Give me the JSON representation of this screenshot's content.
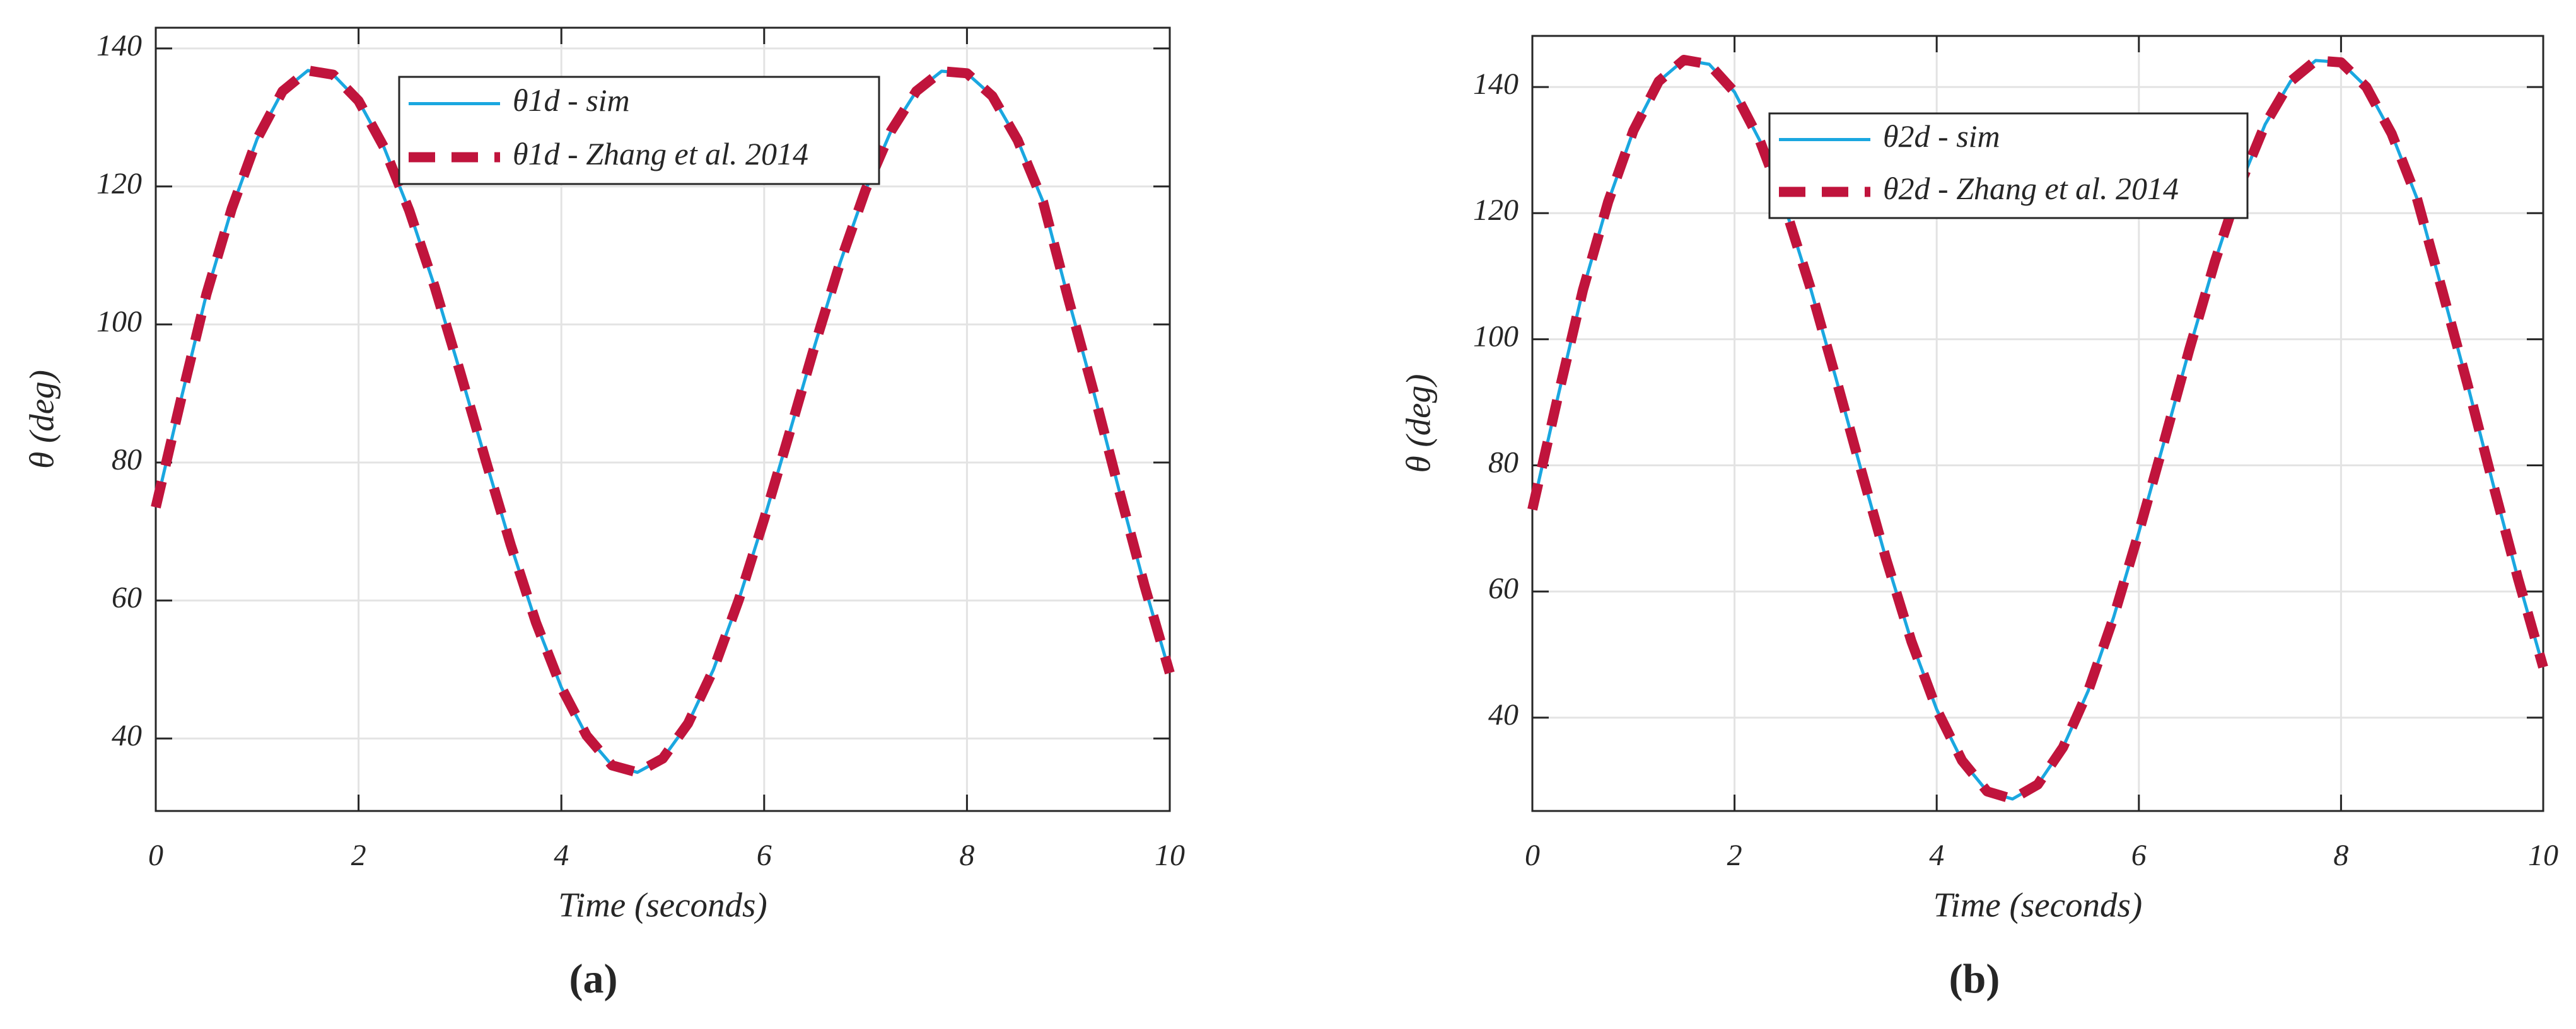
{
  "chart_data": [
    {
      "type": "line",
      "panel_label": "(a)",
      "xlabel": "Time (seconds)",
      "ylabel": "θ (deg)",
      "x": [
        0,
        0.25,
        0.5,
        0.75,
        1,
        1.25,
        1.5,
        1.75,
        2,
        2.25,
        2.5,
        2.75,
        3,
        3.25,
        3.5,
        3.75,
        4,
        4.25,
        4.5,
        4.75,
        5,
        5.25,
        5.5,
        5.75,
        6,
        6.25,
        6.5,
        6.75,
        7,
        7.25,
        7.5,
        7.75,
        8,
        8.25,
        8.5,
        8.75,
        9,
        9.25,
        9.5,
        9.75,
        10
      ],
      "series": [
        {
          "name": "θ1d - sim",
          "color": "#1aa7e0",
          "line_style": "solid",
          "values": [
            73.5,
            89.2,
            104.4,
            116.8,
            126.9,
            133.8,
            136.8,
            136.2,
            132.4,
            125.7,
            116.5,
            105.5,
            93.2,
            80.5,
            68.1,
            56.8,
            47.4,
            40.4,
            36.1,
            35.1,
            37.1,
            42.2,
            50.0,
            60.1,
            71.8,
            84.3,
            97.0,
            109.0,
            119.5,
            128.0,
            133.8,
            136.7,
            136.4,
            133.1,
            126.7,
            117.8,
            103.7,
            90.2,
            76.0,
            62.2,
            49.5
          ]
        },
        {
          "name": "θ1d - Zhang et al. 2014",
          "color": "#c0143c",
          "line_style": "dashed",
          "values": [
            73.5,
            89.2,
            104.4,
            116.8,
            126.9,
            133.8,
            136.8,
            136.2,
            132.4,
            125.7,
            116.5,
            105.5,
            93.2,
            80.5,
            68.1,
            56.8,
            47.4,
            40.4,
            36.1,
            35.1,
            37.1,
            42.2,
            50.0,
            60.1,
            71.8,
            84.3,
            97.0,
            109.0,
            119.5,
            128.0,
            133.8,
            136.7,
            136.4,
            133.1,
            126.7,
            117.8,
            103.7,
            90.2,
            76.0,
            62.2,
            49.5
          ]
        }
      ],
      "xlim": [
        0,
        10
      ],
      "xticks": [
        0,
        2,
        4,
        6,
        8,
        10
      ],
      "ylim": [
        29.5,
        143
      ],
      "yticks": [
        40,
        60,
        80,
        100,
        120,
        140
      ],
      "grid": true
    },
    {
      "type": "line",
      "panel_label": "(b)",
      "xlabel": "Time (seconds)",
      "ylabel": "θ (deg)",
      "x": [
        0,
        0.25,
        0.5,
        0.75,
        1,
        1.25,
        1.5,
        1.75,
        2,
        2.25,
        2.5,
        2.75,
        3,
        3.25,
        3.5,
        3.75,
        4,
        4.25,
        4.5,
        4.75,
        5,
        5.25,
        5.5,
        5.75,
        6,
        6.25,
        6.5,
        6.75,
        7,
        7.25,
        7.5,
        7.75,
        8,
        8.25,
        8.5,
        8.75,
        9,
        9.25,
        9.5,
        9.75,
        10
      ],
      "series": [
        {
          "name": "θ2d - sim",
          "color": "#1aa7e0",
          "line_style": "solid",
          "values": [
            73.0,
            90.7,
            107.8,
            121.8,
            133.1,
            140.9,
            144.3,
            143.6,
            139.2,
            131.5,
            120.9,
            108.2,
            94.0,
            79.4,
            65.1,
            52.1,
            41.3,
            33.2,
            28.3,
            27.1,
            29.4,
            35.3,
            44.3,
            55.9,
            69.4,
            83.8,
            98.4,
            112.2,
            124.4,
            134.1,
            140.9,
            144.2,
            143.9,
            140.0,
            132.6,
            122.4,
            107.8,
            92.9,
            77.3,
            62.1,
            48.0
          ]
        },
        {
          "name": "θ2d - Zhang et al. 2014",
          "color": "#c0143c",
          "line_style": "dashed",
          "values": [
            73.0,
            90.7,
            107.8,
            121.8,
            133.1,
            140.9,
            144.3,
            143.6,
            139.2,
            131.5,
            120.9,
            108.2,
            94.0,
            79.4,
            65.1,
            52.1,
            41.3,
            33.2,
            28.3,
            27.1,
            29.4,
            35.3,
            44.3,
            55.9,
            69.4,
            83.8,
            98.4,
            112.2,
            124.4,
            134.1,
            140.9,
            144.2,
            143.9,
            140.0,
            132.6,
            122.4,
            107.8,
            92.9,
            77.3,
            62.1,
            48.0
          ]
        }
      ],
      "xlim": [
        0,
        10
      ],
      "xticks": [
        0,
        2,
        4,
        6,
        8,
        10
      ],
      "ylim": [
        25.2,
        148.1
      ],
      "yticks": [
        40,
        60,
        80,
        100,
        120,
        140
      ],
      "grid": true
    }
  ]
}
